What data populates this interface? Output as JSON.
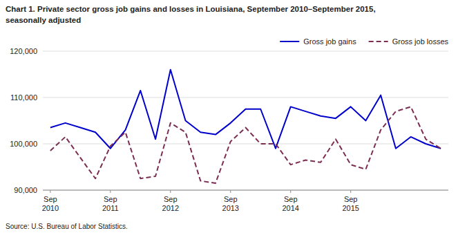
{
  "chart_data": {
    "type": "line",
    "title": "Chart 1. Private sector gross job gains and losses in Louisiana,  September 2010–September 2015,",
    "subtitle": "seasonally adjusted",
    "annotations": [
      "Source: U.S. Bureau of Labor Statistics."
    ],
    "categories": [
      "Sep\n2010",
      null,
      null,
      null,
      "Sep\n2011",
      null,
      null,
      null,
      "Sep\n2012",
      null,
      null,
      null,
      "Sep\n2013",
      null,
      null,
      null,
      "Sep\n2014",
      null,
      null,
      null,
      "Sep\n2015",
      null,
      null,
      null,
      null,
      null,
      null
    ],
    "series": [
      {
        "name": "Gross job gains",
        "color": "#0000CC",
        "line_style": "solid",
        "values": [
          103500,
          104500,
          103500,
          102500,
          99000,
          103000,
          111500,
          101000,
          116000,
          105000,
          102500,
          102000,
          104500,
          107500,
          107500,
          99000,
          108000,
          107000,
          106000,
          105500,
          108000,
          105000,
          110500,
          99000,
          101500,
          100000,
          99000
        ]
      },
      {
        "name": "Gross job losses",
        "color": "#7B2D52",
        "line_style": "dashed",
        "values": [
          98500,
          101500,
          97000,
          92500,
          99500,
          102500,
          92500,
          93000,
          104500,
          102500,
          92000,
          91500,
          100500,
          103500,
          100000,
          100000,
          95500,
          96500,
          96000,
          101000,
          95500,
          94500,
          103000,
          107000,
          108000,
          101000,
          99000
        ]
      }
    ],
    "ylim": [
      90000,
      120000
    ],
    "yticks": [
      {
        "value": 90000,
        "label": "90,000"
      },
      {
        "value": 100000,
        "label": "100,000"
      },
      {
        "value": 110000,
        "label": "110,000"
      },
      {
        "value": 120000,
        "label": "120,000"
      }
    ],
    "grid": true,
    "legend": "upper right"
  }
}
